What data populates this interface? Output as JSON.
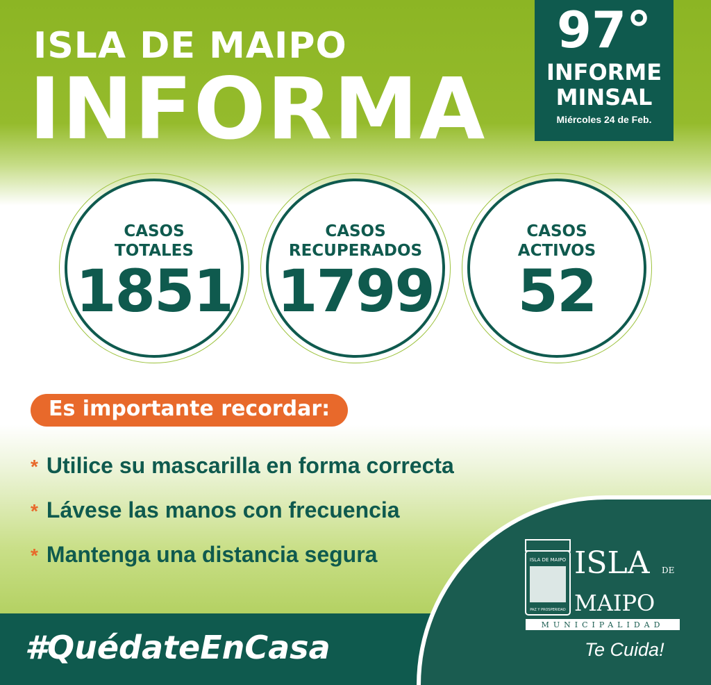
{
  "header": {
    "line1": "ISLA DE MAIPO",
    "line2": "INFORMA"
  },
  "report": {
    "number": "97°",
    "line1": "INFORME",
    "line2": "MINSAL",
    "date": "Miércoles 24 de Feb."
  },
  "stats": [
    {
      "label1": "CASOS",
      "label2": "TOTALES",
      "value": "1851"
    },
    {
      "label1": "CASOS",
      "label2": "RECUPERADOS",
      "value": "1799"
    },
    {
      "label1": "CASOS",
      "label2": "ACTIVOS",
      "value": "52"
    }
  ],
  "reminder": {
    "title": "Es importante recordar:",
    "items": [
      "Utilice su mascarilla en forma correcta",
      "Lávese las manos con frecuencia",
      "Mantenga una distancia segura"
    ],
    "bullet": "*"
  },
  "footer": {
    "hashtag": "#QuédateEnCasa",
    "tagline": "Te Cuida!"
  },
  "logo": {
    "text1": "ISLA",
    "text2": "DE",
    "text3": "MAIPO",
    "subtitle": "MUNICIPALIDAD",
    "shield_text": "ISLA DE MAIPO",
    "motto": "PAZ Y PROSPERIDAD"
  },
  "colors": {
    "green": "#8cb524",
    "teal": "#0f5a4e",
    "orange": "#e8692b"
  }
}
